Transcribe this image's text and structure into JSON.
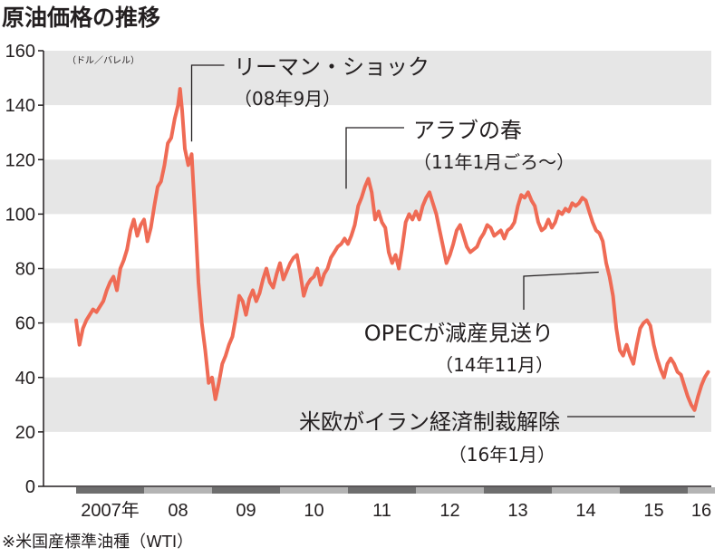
{
  "chart_data": {
    "type": "line",
    "title": "原油価格の推移",
    "unit": "（ドル／バレル）",
    "note": "※米国産標準油種（WTI）",
    "ylim": [
      0,
      160
    ],
    "yticks": [
      0,
      20,
      40,
      60,
      80,
      100,
      120,
      140,
      160
    ],
    "xlim": [
      2007.0,
      2016.4
    ],
    "xticks": [
      {
        "label": "2007年",
        "year": 2007
      },
      {
        "label": "08",
        "year": 2008
      },
      {
        "label": "09",
        "year": 2009
      },
      {
        "label": "10",
        "year": 2010
      },
      {
        "label": "11",
        "year": 2011
      },
      {
        "label": "12",
        "year": 2012
      },
      {
        "label": "13",
        "year": 2013
      },
      {
        "label": "14",
        "year": 2014
      },
      {
        "label": "15",
        "year": 2015
      },
      {
        "label": "16",
        "year": 2016
      }
    ],
    "grid": "horizontal-bands",
    "line_color": "#ef6b55",
    "band_color": "#e6e6e6",
    "year_bar_colors": [
      "#6e6e6e",
      "#b4b4b4"
    ],
    "series": [
      {
        "values": [
          [
            2007.0,
            61
          ],
          [
            2007.05,
            52
          ],
          [
            2007.1,
            58
          ],
          [
            2007.15,
            61
          ],
          [
            2007.2,
            63
          ],
          [
            2007.25,
            65
          ],
          [
            2007.3,
            64
          ],
          [
            2007.35,
            66
          ],
          [
            2007.4,
            68
          ],
          [
            2007.45,
            72
          ],
          [
            2007.5,
            75
          ],
          [
            2007.55,
            77
          ],
          [
            2007.6,
            72
          ],
          [
            2007.65,
            80
          ],
          [
            2007.7,
            83
          ],
          [
            2007.75,
            87
          ],
          [
            2007.8,
            94
          ],
          [
            2007.85,
            98
          ],
          [
            2007.9,
            92
          ],
          [
            2007.95,
            96
          ],
          [
            2008.0,
            98
          ],
          [
            2008.05,
            90
          ],
          [
            2008.1,
            95
          ],
          [
            2008.15,
            103
          ],
          [
            2008.2,
            110
          ],
          [
            2008.25,
            112
          ],
          [
            2008.3,
            118
          ],
          [
            2008.35,
            126
          ],
          [
            2008.4,
            128
          ],
          [
            2008.45,
            135
          ],
          [
            2008.5,
            140
          ],
          [
            2008.53,
            146
          ],
          [
            2008.56,
            138
          ],
          [
            2008.6,
            124
          ],
          [
            2008.65,
            118
          ],
          [
            2008.7,
            122
          ],
          [
            2008.75,
            100
          ],
          [
            2008.8,
            75
          ],
          [
            2008.85,
            60
          ],
          [
            2008.9,
            50
          ],
          [
            2008.95,
            38
          ],
          [
            2009.0,
            40
          ],
          [
            2009.05,
            32
          ],
          [
            2009.1,
            38
          ],
          [
            2009.15,
            45
          ],
          [
            2009.2,
            48
          ],
          [
            2009.25,
            52
          ],
          [
            2009.3,
            55
          ],
          [
            2009.35,
            62
          ],
          [
            2009.4,
            70
          ],
          [
            2009.45,
            68
          ],
          [
            2009.5,
            63
          ],
          [
            2009.55,
            69
          ],
          [
            2009.6,
            72
          ],
          [
            2009.65,
            68
          ],
          [
            2009.7,
            71
          ],
          [
            2009.75,
            76
          ],
          [
            2009.8,
            80
          ],
          [
            2009.85,
            75
          ],
          [
            2009.9,
            73
          ],
          [
            2009.95,
            78
          ],
          [
            2010.0,
            82
          ],
          [
            2010.05,
            76
          ],
          [
            2010.1,
            79
          ],
          [
            2010.15,
            82
          ],
          [
            2010.2,
            84
          ],
          [
            2010.25,
            85
          ],
          [
            2010.3,
            78
          ],
          [
            2010.35,
            70
          ],
          [
            2010.4,
            74
          ],
          [
            2010.45,
            76
          ],
          [
            2010.5,
            77
          ],
          [
            2010.55,
            80
          ],
          [
            2010.6,
            74
          ],
          [
            2010.65,
            78
          ],
          [
            2010.7,
            80
          ],
          [
            2010.75,
            84
          ],
          [
            2010.8,
            86
          ],
          [
            2010.85,
            88
          ],
          [
            2010.9,
            89
          ],
          [
            2010.95,
            91
          ],
          [
            2011.0,
            89
          ],
          [
            2011.05,
            92
          ],
          [
            2011.1,
            96
          ],
          [
            2011.15,
            103
          ],
          [
            2011.2,
            106
          ],
          [
            2011.25,
            110
          ],
          [
            2011.3,
            113
          ],
          [
            2011.35,
            108
          ],
          [
            2011.4,
            98
          ],
          [
            2011.45,
            101
          ],
          [
            2011.5,
            97
          ],
          [
            2011.55,
            95
          ],
          [
            2011.6,
            86
          ],
          [
            2011.65,
            82
          ],
          [
            2011.7,
            85
          ],
          [
            2011.75,
            80
          ],
          [
            2011.8,
            88
          ],
          [
            2011.85,
            97
          ],
          [
            2011.9,
            100
          ],
          [
            2011.95,
            98
          ],
          [
            2012.0,
            101
          ],
          [
            2012.05,
            98
          ],
          [
            2012.1,
            103
          ],
          [
            2012.15,
            106
          ],
          [
            2012.2,
            108
          ],
          [
            2012.25,
            104
          ],
          [
            2012.3,
            100
          ],
          [
            2012.35,
            94
          ],
          [
            2012.4,
            88
          ],
          [
            2012.45,
            82
          ],
          [
            2012.5,
            85
          ],
          [
            2012.55,
            89
          ],
          [
            2012.6,
            94
          ],
          [
            2012.65,
            96
          ],
          [
            2012.7,
            92
          ],
          [
            2012.75,
            88
          ],
          [
            2012.8,
            86
          ],
          [
            2012.85,
            87
          ],
          [
            2012.9,
            88
          ],
          [
            2012.95,
            91
          ],
          [
            2013.0,
            93
          ],
          [
            2013.05,
            96
          ],
          [
            2013.1,
            95
          ],
          [
            2013.15,
            92
          ],
          [
            2013.2,
            93
          ],
          [
            2013.25,
            94
          ],
          [
            2013.3,
            91
          ],
          [
            2013.35,
            94
          ],
          [
            2013.4,
            95
          ],
          [
            2013.45,
            97
          ],
          [
            2013.5,
            103
          ],
          [
            2013.55,
            107
          ],
          [
            2013.6,
            106
          ],
          [
            2013.65,
            108
          ],
          [
            2013.7,
            105
          ],
          [
            2013.75,
            103
          ],
          [
            2013.8,
            97
          ],
          [
            2013.85,
            94
          ],
          [
            2013.9,
            95
          ],
          [
            2013.95,
            98
          ],
          [
            2014.0,
            95
          ],
          [
            2014.05,
            97
          ],
          [
            2014.1,
            101
          ],
          [
            2014.15,
            100
          ],
          [
            2014.2,
            102
          ],
          [
            2014.25,
            101
          ],
          [
            2014.3,
            104
          ],
          [
            2014.35,
            103
          ],
          [
            2014.4,
            104
          ],
          [
            2014.45,
            106
          ],
          [
            2014.5,
            105
          ],
          [
            2014.55,
            101
          ],
          [
            2014.6,
            97
          ],
          [
            2014.65,
            94
          ],
          [
            2014.7,
            93
          ],
          [
            2014.75,
            90
          ],
          [
            2014.8,
            82
          ],
          [
            2014.85,
            77
          ],
          [
            2014.9,
            70
          ],
          [
            2014.95,
            58
          ],
          [
            2015.0,
            50
          ],
          [
            2015.05,
            48
          ],
          [
            2015.1,
            52
          ],
          [
            2015.15,
            48
          ],
          [
            2015.2,
            45
          ],
          [
            2015.25,
            52
          ],
          [
            2015.3,
            58
          ],
          [
            2015.35,
            60
          ],
          [
            2015.4,
            61
          ],
          [
            2015.45,
            59
          ],
          [
            2015.5,
            52
          ],
          [
            2015.55,
            47
          ],
          [
            2015.6,
            43
          ],
          [
            2015.65,
            40
          ],
          [
            2015.7,
            45
          ],
          [
            2015.75,
            47
          ],
          [
            2015.8,
            45
          ],
          [
            2015.85,
            42
          ],
          [
            2015.9,
            41
          ],
          [
            2015.95,
            37
          ],
          [
            2016.0,
            33
          ],
          [
            2016.05,
            30
          ],
          [
            2016.1,
            28
          ],
          [
            2016.15,
            33
          ],
          [
            2016.2,
            37
          ],
          [
            2016.25,
            40
          ],
          [
            2016.3,
            42
          ]
        ]
      }
    ],
    "annotations": [
      {
        "label": "リーマン・ショック",
        "sub": "（08年9月）",
        "x": 2008.7,
        "y": 124
      },
      {
        "label": "アラブの春",
        "sub": "（11年1月ごろ～）",
        "x": 2011.0,
        "y": 106
      },
      {
        "label": "OPECが減産見送り",
        "sub": "（14年11月）",
        "x": 2014.85,
        "y": 77
      },
      {
        "label": "米欧がイラン経済制裁解除",
        "sub": "（16年1月）",
        "x": 2016.05,
        "y": 26
      }
    ]
  }
}
